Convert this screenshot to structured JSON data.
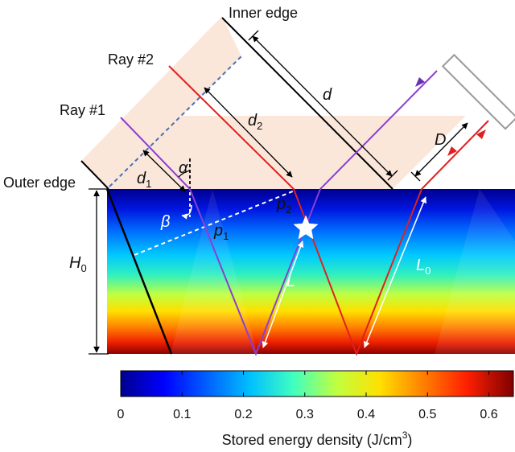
{
  "labels": {
    "inner_edge": "Inner edge",
    "outer_edge": "Outer edge",
    "ray1": "Ray #1",
    "ray2": "Ray #2"
  },
  "symbols": {
    "d": "d",
    "d1": "d",
    "d1_sub": "1",
    "d2": "d",
    "d2_sub": "2",
    "D": "D",
    "alpha": "α",
    "beta": "β",
    "p1": "p",
    "p1_sub": "1",
    "p2": "p",
    "p2_sub": "2",
    "L": "L",
    "L0": "L",
    "L0_sub": "0",
    "H0": "H",
    "H0_sub": "0"
  },
  "colorbar": {
    "label_main": "Stored energy density (J/cm",
    "label_sup": "3",
    "label_end": ")",
    "ticks": [
      "0",
      "0.1",
      "0.2",
      "0.3",
      "0.4",
      "0.5",
      "0.6"
    ],
    "tick_values": [
      0,
      0.1,
      0.2,
      0.3,
      0.4,
      0.5,
      0.6
    ],
    "min": 0,
    "max": 0.64
  },
  "colors": {
    "beam_fill": "#fbe7da",
    "ray1": "#8b3fd1",
    "ray2": "#e02020",
    "dashed": "#4a6fb5",
    "mirror": "#9a9a9a"
  }
}
